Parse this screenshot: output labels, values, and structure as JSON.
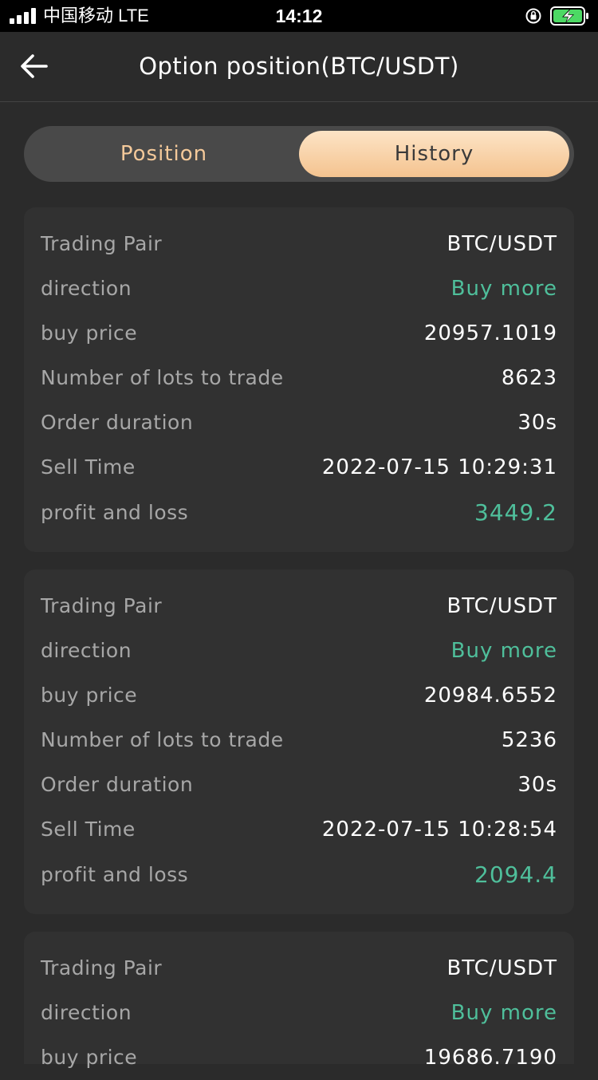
{
  "status_bar": {
    "carrier": "中国移动  LTE",
    "time": "14:12"
  },
  "nav": {
    "title": "Option position(BTC/USDT)",
    "back_icon": "arrow-left-icon"
  },
  "tabs": [
    {
      "label": "Position",
      "active": false
    },
    {
      "label": "History",
      "active": true
    }
  ],
  "labels": {
    "trading_pair": "Trading Pair",
    "direction": "direction",
    "buy_price": "buy price",
    "lots": "Number of lots to trade",
    "duration": "Order duration",
    "sell_time": "Sell Time",
    "pnl": "profit and loss"
  },
  "records": [
    {
      "trading_pair": "BTC/USDT",
      "direction": "Buy more",
      "buy_price": "20957.1019",
      "lots": "8623",
      "duration": "30s",
      "sell_time": "2022-07-15 10:29:31",
      "pnl": "3449.2"
    },
    {
      "trading_pair": "BTC/USDT",
      "direction": "Buy more",
      "buy_price": "20984.6552",
      "lots": "5236",
      "duration": "30s",
      "sell_time": "2022-07-15 10:28:54",
      "pnl": "2094.4"
    },
    {
      "trading_pair": "BTC/USDT",
      "direction": "Buy more",
      "buy_price": "19686.7190"
    }
  ],
  "colors": {
    "background": "#2b2b2b",
    "card": "#313131",
    "accent_gold": "#f4c99a",
    "positive_green": "#4fbf9b",
    "label_gray": "#a7a7a7"
  }
}
